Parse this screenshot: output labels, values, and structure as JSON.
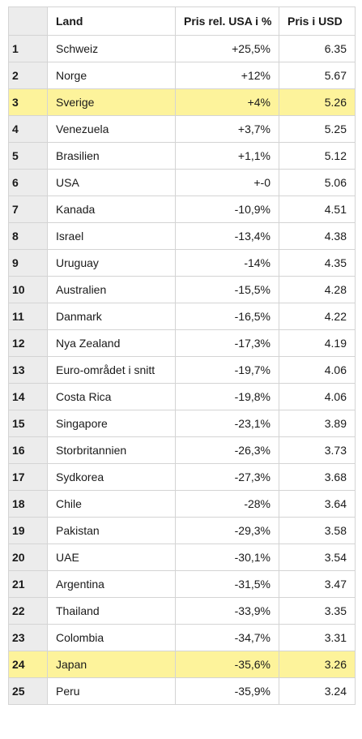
{
  "table": {
    "headers": {
      "rank": "",
      "land": "Land",
      "rel": "Pris rel. USA i %",
      "usd": "Pris i USD"
    },
    "rows": [
      {
        "rank": "1",
        "land": "Schweiz",
        "rel": "+25,5%",
        "usd": "6.35",
        "highlight": false
      },
      {
        "rank": "2",
        "land": "Norge",
        "rel": "+12%",
        "usd": "5.67",
        "highlight": false
      },
      {
        "rank": "3",
        "land": "Sverige",
        "rel": "+4%",
        "usd": "5.26",
        "highlight": true
      },
      {
        "rank": "4",
        "land": "Venezuela",
        "rel": "+3,7%",
        "usd": "5.25",
        "highlight": false
      },
      {
        "rank": "5",
        "land": "Brasilien",
        "rel": "+1,1%",
        "usd": "5.12",
        "highlight": false
      },
      {
        "rank": "6",
        "land": "USA",
        "rel": "+-0",
        "usd": "5.06",
        "highlight": false
      },
      {
        "rank": "7",
        "land": "Kanada",
        "rel": "-10,9%",
        "usd": "4.51",
        "highlight": false
      },
      {
        "rank": "8",
        "land": "Israel",
        "rel": "-13,4%",
        "usd": "4.38",
        "highlight": false
      },
      {
        "rank": "9",
        "land": "Uruguay",
        "rel": "-14%",
        "usd": "4.35",
        "highlight": false
      },
      {
        "rank": "10",
        "land": "Australien",
        "rel": "-15,5%",
        "usd": "4.28",
        "highlight": false
      },
      {
        "rank": "11",
        "land": "Danmark",
        "rel": "-16,5%",
        "usd": "4.22",
        "highlight": false
      },
      {
        "rank": "12",
        "land": "Nya Zealand",
        "rel": "-17,3%",
        "usd": "4.19",
        "highlight": false
      },
      {
        "rank": "13",
        "land": "Euro-området i snitt",
        "rel": "-19,7%",
        "usd": "4.06",
        "highlight": false
      },
      {
        "rank": "14",
        "land": "Costa Rica",
        "rel": "-19,8%",
        "usd": "4.06",
        "highlight": false
      },
      {
        "rank": "15",
        "land": "Singapore",
        "rel": "-23,1%",
        "usd": "3.89",
        "highlight": false
      },
      {
        "rank": "16",
        "land": "Storbritannien",
        "rel": "-26,3%",
        "usd": "3.73",
        "highlight": false
      },
      {
        "rank": "17",
        "land": "Sydkorea",
        "rel": "-27,3%",
        "usd": "3.68",
        "highlight": false
      },
      {
        "rank": "18",
        "land": "Chile",
        "rel": "-28%",
        "usd": "3.64",
        "highlight": false
      },
      {
        "rank": "19",
        "land": "Pakistan",
        "rel": "-29,3%",
        "usd": "3.58",
        "highlight": false
      },
      {
        "rank": "20",
        "land": "UAE",
        "rel": "-30,1%",
        "usd": "3.54",
        "highlight": false
      },
      {
        "rank": "21",
        "land": "Argentina",
        "rel": "-31,5%",
        "usd": "3.47",
        "highlight": false
      },
      {
        "rank": "22",
        "land": "Thailand",
        "rel": "-33,9%",
        "usd": "3.35",
        "highlight": false
      },
      {
        "rank": "23",
        "land": "Colombia",
        "rel": "-34,7%",
        "usd": "3.31",
        "highlight": false
      },
      {
        "rank": "24",
        "land": "Japan",
        "rel": "-35,6%",
        "usd": "3.26",
        "highlight": true
      },
      {
        "rank": "25",
        "land": "Peru",
        "rel": "-35,9%",
        "usd": "3.24",
        "highlight": false
      }
    ]
  },
  "colors": {
    "highlight": "#fdf39b",
    "rank_column_bg": "#ececec",
    "border": "#d4d4d4"
  }
}
